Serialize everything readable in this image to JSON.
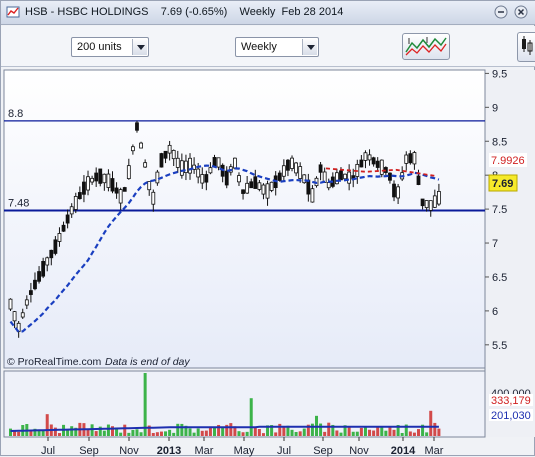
{
  "window": {
    "title": "HSB - HSBC HOLDINGS    7.69 (-0.65%)    Weekly  Feb 28 2014"
  },
  "toolbar": {
    "units_value": "200 units",
    "period_value": "Weekly",
    "icons": {
      "app": "chart-app-icon",
      "minimize": "minimize-icon",
      "close": "close-icon",
      "indicators": "indicators-icon",
      "side": "side-panel-icon"
    }
  },
  "colors": {
    "bull_candle": "#ffffff",
    "bear_candle": "#111111",
    "sma_line": "#1a3fc0",
    "short_ma": "#d02020",
    "volume_up": "#3cb34a",
    "volume_down": "#d24a4a",
    "volume_ma": "#1d2fb0",
    "last_price_bg": "#f6ea2a",
    "ma_value_color": "#d02020",
    "vol_value_color": "#d02020"
  },
  "chart_data": {
    "type": "candlestick",
    "price_axis": {
      "ticks": [
        "9.5",
        "9",
        "8.5",
        "8",
        "7.5",
        "7",
        "6.5",
        "6",
        "5.5"
      ],
      "ylim": [
        5.35,
        9.55
      ]
    },
    "time_axis": {
      "ticks": [
        "Jul",
        "Sep",
        "Nov",
        "2013",
        "Mar",
        "May",
        "Jul",
        "Sep",
        "Nov",
        "2014",
        "Mar"
      ]
    },
    "horizontal_lines": [
      {
        "label": "8.8",
        "value": 8.8
      },
      {
        "label": "7.48",
        "value": 7.48
      }
    ],
    "last_price_label": "7.69",
    "ma_value_label": "7.9926",
    "volume_labels": {
      "top": "400,000",
      "vol": "333,179",
      "vol_ma": "201,030"
    },
    "credit": "© ProRealTime.com",
    "note": "Data is end of day"
  }
}
